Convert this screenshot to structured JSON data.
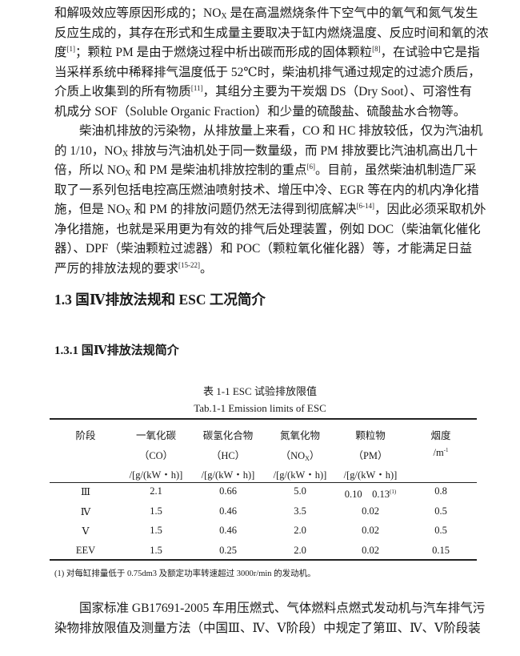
{
  "paragraph1": [
    [
      {
        "t": "和解吸效应等原因形成的；NO"
      },
      {
        "sub": "X"
      },
      {
        "t": " 是在高温燃烧条件下空气中的氧气和氮气发生"
      }
    ],
    [
      {
        "t": "反应生成的，其存在形式和生成量主要取决于缸内燃烧温度、反应时间和氧的浓"
      }
    ],
    [
      {
        "t": "度"
      },
      {
        "sup": "[1]"
      },
      {
        "t": "；颗粒 PM 是由于燃烧过程中析出碳而形成的固体颗粒"
      },
      {
        "sup": "[8]"
      },
      {
        "t": "，在试验中它是指"
      }
    ],
    [
      {
        "t": "当采样系统中稀释排气温度低于 52℃时，柴油机排气通过规定的过滤介质后，"
      }
    ],
    [
      {
        "t": "介质上收集到的所有物质"
      },
      {
        "sup": "[11]"
      },
      {
        "t": "，其组分主要为干炭烟 DS（Dry Soot）、可溶性有"
      }
    ],
    [
      {
        "t": "机成分 SOF（Soluble Organic Fraction）和少量的硫酸盐、硫酸盐水合物等。"
      }
    ]
  ],
  "paragraph2": [
    [
      {
        "t": "　　柴油机排放的污染物，从排放量上来看，CO 和 HC 排放较低，仅为汽油机"
      }
    ],
    [
      {
        "t": "的 1/10，NO"
      },
      {
        "sub": "X"
      },
      {
        "t": " 排放与汽油机处于同一数量级，而 PM 排放要比汽油机高出几十"
      }
    ],
    [
      {
        "t": "倍，所以 NO"
      },
      {
        "sub": "X"
      },
      {
        "t": " 和 PM 是柴油机排放控制的重点"
      },
      {
        "sup": "[6]"
      },
      {
        "t": "。目前，虽然柴油机制造厂采"
      }
    ],
    [
      {
        "t": "取了一系列包括电控高压燃油喷射技术、增压中冷、EGR 等在内的机内净化措"
      }
    ],
    [
      {
        "t": "施，但是 NO"
      },
      {
        "sub": "X"
      },
      {
        "t": " 和 PM 的排放问题仍然无法得到彻底解决"
      },
      {
        "sup": "[6-14]"
      },
      {
        "t": "，因此必须采取机外"
      }
    ],
    [
      {
        "t": "净化措施，也就是采用更为有效的排气后处理装置，例如 DOC（柴油氧化催化"
      }
    ],
    [
      {
        "t": "器）、DPF（柴油颗粒过滤器）和 POC（颗粒氧化催化器）等，才能满足日益"
      }
    ],
    [
      {
        "t": "严厉的排放法规的要求"
      },
      {
        "sup": "[15-22]"
      },
      {
        "t": "。"
      }
    ]
  ],
  "section_heading": "1.3 国Ⅳ排放法规和 ESC 工况简介",
  "subsection_heading": "1.3.1 国Ⅳ排放法规简介",
  "table": {
    "caption_cn": "表 1-1 ESC 试验排放限值",
    "caption_en": "Tab.1-1 Emission limits of ESC",
    "headers": [
      [
        [
          {
            "t": "阶段"
          }
        ],
        [
          {
            "t": "一氧化碳"
          }
        ],
        [
          {
            "t": "碳氢化合物"
          }
        ],
        [
          {
            "t": "氮氧化物"
          }
        ],
        [
          {
            "t": "颗粒物"
          }
        ],
        [
          {
            "t": "烟度"
          }
        ]
      ],
      [
        [
          {
            "t": ""
          }
        ],
        [
          {
            "t": "（CO）"
          }
        ],
        [
          {
            "t": "（HC）"
          }
        ],
        [
          {
            "t": "（NO"
          },
          {
            "sub": "X"
          },
          {
            "t": "）"
          }
        ],
        [
          {
            "t": "（PM）"
          }
        ],
        [
          {
            "t": "/m"
          },
          {
            "sup": "-1"
          }
        ]
      ],
      [
        [
          {
            "t": ""
          }
        ],
        [
          {
            "t": "/[g/(kW・h)]"
          }
        ],
        [
          {
            "t": "/[g/(kW・h)]"
          }
        ],
        [
          {
            "t": "/[g/(kW・h)]"
          }
        ],
        [
          {
            "t": "/[g/(kW・h)]"
          }
        ],
        [
          {
            "t": ""
          }
        ]
      ]
    ],
    "rows": [
      [
        [
          {
            "t": "Ⅲ"
          }
        ],
        [
          {
            "t": "2.1"
          }
        ],
        [
          {
            "t": "0.66"
          }
        ],
        [
          {
            "t": "5.0"
          }
        ],
        [
          {
            "t": "0.10　0.13"
          },
          {
            "sup": "(1)"
          }
        ],
        [
          {
            "t": "0.8"
          }
        ]
      ],
      [
        [
          {
            "t": "Ⅳ"
          }
        ],
        [
          {
            "t": "1.5"
          }
        ],
        [
          {
            "t": "0.46"
          }
        ],
        [
          {
            "t": "3.5"
          }
        ],
        [
          {
            "t": "0.02"
          }
        ],
        [
          {
            "t": "0.5"
          }
        ]
      ],
      [
        [
          {
            "t": "Ⅴ"
          }
        ],
        [
          {
            "t": "1.5"
          }
        ],
        [
          {
            "t": "0.46"
          }
        ],
        [
          {
            "t": "2.0"
          }
        ],
        [
          {
            "t": "0.02"
          }
        ],
        [
          {
            "t": "0.5"
          }
        ]
      ],
      [
        [
          {
            "t": "EEV"
          }
        ],
        [
          {
            "t": "1.5"
          }
        ],
        [
          {
            "t": "0.25"
          }
        ],
        [
          {
            "t": "2.0"
          }
        ],
        [
          {
            "t": "0.02"
          }
        ],
        [
          {
            "t": "0.15"
          }
        ]
      ]
    ],
    "footnote": "(1) 对每缸排量低于 0.75dm3 及额定功率转速超过 3000r/min 的发动机。"
  },
  "paragraph3": [
    [
      {
        "t": "　　国家标准 GB17691-2005 车用压燃式、气体燃料点燃式发动机与汽车排气污"
      }
    ],
    [
      {
        "t": "染物排放限值及测量方法（中国Ⅲ、Ⅳ、Ⅴ阶段）中规定了第Ⅲ、Ⅳ、Ⅴ阶段装"
      }
    ]
  ]
}
